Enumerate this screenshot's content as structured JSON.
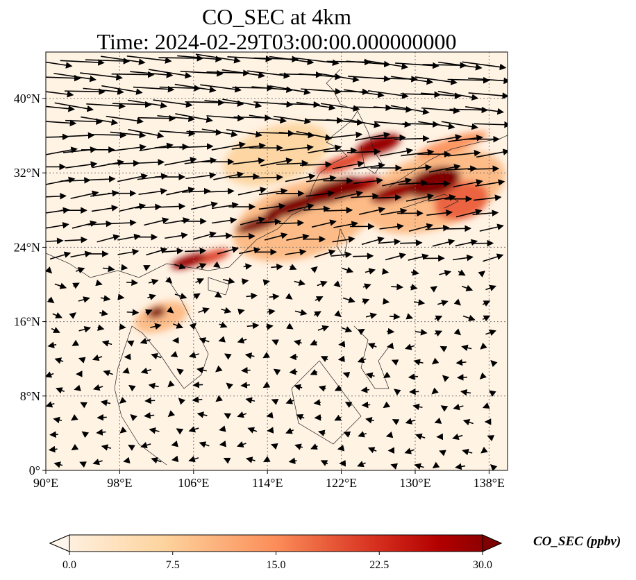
{
  "title": {
    "line1": "CO_SEC at 4km",
    "line2": "Time: 2024-02-29T03:00:00.000000000"
  },
  "chart_data": {
    "type": "heatmap",
    "title": "CO_SEC at 4km\nTime: 2024-02-29T03:00:00.000000000",
    "lon_range": [
      90,
      140
    ],
    "lat_range": [
      0,
      45
    ],
    "x_ticks": [
      "90°E",
      "98°E",
      "106°E",
      "114°E",
      "122°E",
      "130°E",
      "138°E"
    ],
    "x_tick_values": [
      90,
      98,
      106,
      114,
      122,
      130,
      138
    ],
    "y_ticks": [
      "0°",
      "8°N",
      "16°N",
      "24°N",
      "32°N",
      "40°N"
    ],
    "y_tick_values": [
      0,
      8,
      16,
      24,
      32,
      40
    ],
    "grid": true,
    "colorbar": {
      "label": "CO_SEC (ppbv)",
      "ticks": [
        "0.0",
        "7.5",
        "15.0",
        "22.5",
        "30.0"
      ],
      "range": [
        0,
        30
      ],
      "extend": "both",
      "colors": [
        "#fff5eb",
        "#fdd49e",
        "#fc8d59",
        "#d7301f",
        "#b30000",
        "#7f0000"
      ]
    },
    "plume_features": [
      {
        "lon": 102,
        "lat": 17,
        "value": 30,
        "rx": 1,
        "ry": 0.6
      },
      {
        "lon": 102.5,
        "lat": 16.5,
        "value": 10,
        "rx": 3,
        "ry": 1.5
      },
      {
        "lon": 105.5,
        "lat": 22.5,
        "value": 28,
        "rx": 2,
        "ry": 0.6
      },
      {
        "lon": 108,
        "lat": 23,
        "value": 20,
        "rx": 2,
        "ry": 0.6
      },
      {
        "lon": 113,
        "lat": 26.5,
        "value": 30,
        "rx": 2.5,
        "ry": 0.7
      },
      {
        "lon": 117,
        "lat": 28.5,
        "value": 30,
        "rx": 3.5,
        "ry": 0.9
      },
      {
        "lon": 121,
        "lat": 30,
        "value": 30,
        "rx": 3.5,
        "ry": 1.1
      },
      {
        "lon": 124,
        "lat": 30.5,
        "value": 26,
        "rx": 2.5,
        "ry": 0.8
      },
      {
        "lon": 132,
        "lat": 31,
        "value": 30,
        "rx": 3,
        "ry": 1.5
      },
      {
        "lon": 128,
        "lat": 30,
        "value": 28,
        "rx": 3,
        "ry": 0.9
      },
      {
        "lon": 135,
        "lat": 29,
        "value": 18,
        "rx": 3,
        "ry": 2
      },
      {
        "lon": 126,
        "lat": 35,
        "value": 28,
        "rx": 2.5,
        "ry": 0.9
      },
      {
        "lon": 122,
        "lat": 33,
        "value": 20,
        "rx": 3,
        "ry": 0.7
      },
      {
        "lon": 134,
        "lat": 35,
        "value": 14,
        "rx": 4,
        "ry": 0.8
      },
      {
        "lon": 118,
        "lat": 27,
        "value": 10,
        "rx": 8,
        "ry": 4
      },
      {
        "lon": 115,
        "lat": 34,
        "value": 7,
        "rx": 6,
        "ry": 3
      },
      {
        "lon": 132,
        "lat": 30,
        "value": 10,
        "rx": 8,
        "ry": 4
      }
    ]
  }
}
